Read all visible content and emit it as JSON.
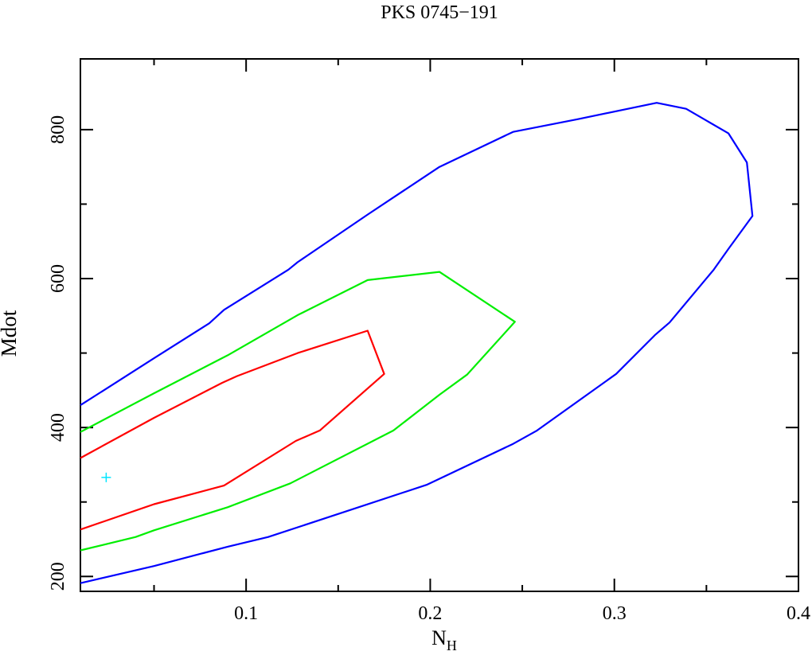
{
  "chart_data": {
    "type": "line",
    "title": "PKS 0745−191",
    "xlabel_main": "N",
    "xlabel_sub": "H",
    "ylabel": "Mdot",
    "xlim": [
      0.01,
      0.4
    ],
    "ylim": [
      180,
      895
    ],
    "x_ticks": [
      0.1,
      0.2,
      0.3,
      0.4
    ],
    "x_tick_labels": [
      "0.1",
      "0.2",
      "0.3",
      "0.4"
    ],
    "y_ticks": [
      200,
      400,
      600,
      800
    ],
    "y_tick_labels": [
      "200",
      "400",
      "600",
      "800"
    ],
    "grid": false,
    "legend": "none",
    "best_fit": {
      "x": 0.024,
      "y": 333,
      "color": "#00e5ff"
    },
    "series": [
      {
        "color": "#0000ff",
        "x": [
          0.01,
          0.05,
          0.08,
          0.088,
          0.123,
          0.128,
          0.166,
          0.205,
          0.245,
          0.28,
          0.323,
          0.339,
          0.362,
          0.372,
          0.375,
          0.362,
          0.354,
          0.33,
          0.322,
          0.301,
          0.258,
          0.245,
          0.198,
          0.112,
          0.09,
          0.05,
          0.01
        ],
        "y": [
          430,
          493,
          540,
          558,
          612,
          622,
          686,
          750,
          797,
          814,
          836,
          828,
          795,
          756,
          684,
          640,
          612,
          541,
          524,
          472,
          396,
          378,
          323,
          253,
          240,
          214,
          191
        ]
      },
      {
        "color": "#00ee00",
        "x": [
          0.01,
          0.05,
          0.09,
          0.128,
          0.166,
          0.205,
          0.246,
          0.22,
          0.205,
          0.18,
          0.124,
          0.09,
          0.05,
          0.04,
          0.01
        ],
        "y": [
          394,
          446,
          497,
          551,
          598,
          609,
          542,
          471,
          444,
          396,
          325,
          293,
          262,
          253,
          235
        ]
      },
      {
        "color": "#ff0000",
        "x": [
          0.01,
          0.05,
          0.087,
          0.095,
          0.128,
          0.166,
          0.175,
          0.14,
          0.127,
          0.088,
          0.05,
          0.01
        ],
        "y": [
          359,
          413,
          460,
          469,
          500,
          530,
          472,
          396,
          382,
          322,
          297,
          263
        ]
      }
    ]
  }
}
